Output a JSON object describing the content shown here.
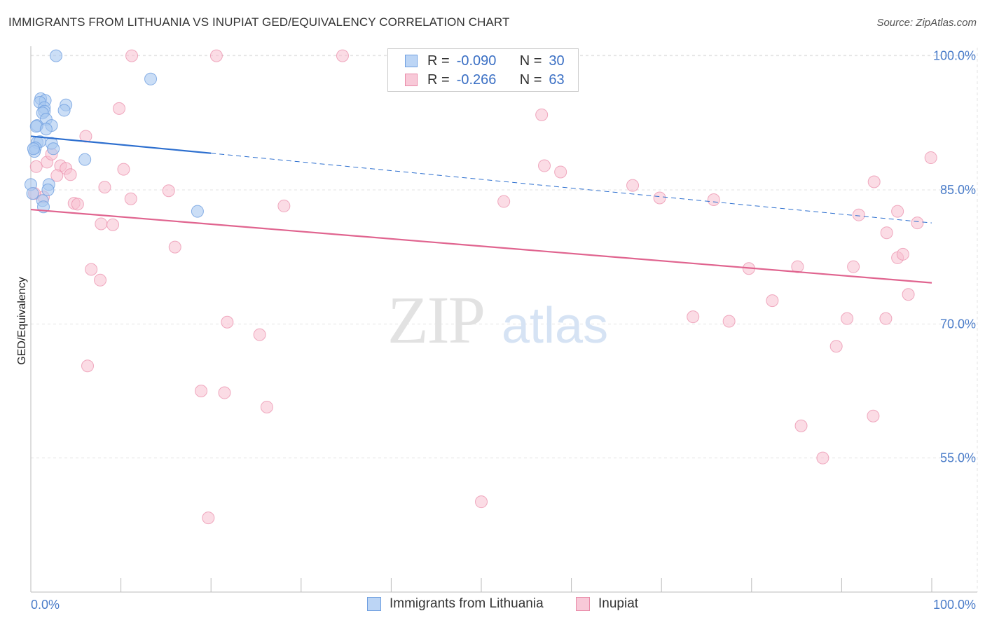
{
  "header": {
    "title": "IMMIGRANTS FROM LITHUANIA VS INUPIAT GED/EQUIVALENCY CORRELATION CHART",
    "source": "Source: ZipAtlas.com"
  },
  "watermark": {
    "zip": "ZIP",
    "atlas": "atlas"
  },
  "legend": {
    "rows": [
      {
        "r_label": "R =",
        "r_value": "-0.090",
        "n_label": "N =",
        "n_value": "30"
      },
      {
        "r_label": "R =",
        "r_value": "-0.266",
        "n_label": "N =",
        "n_value": "63"
      }
    ]
  },
  "bottom_legend": {
    "items": [
      {
        "label": "Immigrants from Lithuania"
      },
      {
        "label": "Inupiat"
      }
    ]
  },
  "colors": {
    "blue_fill": "#a9c8f0",
    "blue_stroke": "#6f9fe0",
    "blue_line": "#2d6fcf",
    "pink_fill": "#f7bfd0",
    "pink_stroke": "#e98aa8",
    "pink_line": "#e0648f",
    "tick_label": "#4a7cc9"
  },
  "chart_data": {
    "type": "scatter",
    "title": "IMMIGRANTS FROM LITHUANIA VS INUPIAT GED/EQUIVALENCY CORRELATION CHART",
    "xlabel": "",
    "ylabel": "GED/Equivalency",
    "xlim": [
      0,
      100
    ],
    "ylim": [
      40,
      101.5
    ],
    "x_tick_labels": [
      "0.0%",
      "100.0%"
    ],
    "y_ticks": [
      {
        "value": 100,
        "label": "100.0%"
      },
      {
        "value": 85,
        "label": "85.0%"
      },
      {
        "value": 70,
        "label": "70.0%"
      },
      {
        "value": 55,
        "label": "55.0%"
      }
    ],
    "grid": true,
    "legend_position": "top-center",
    "series": [
      {
        "name": "Immigrants from Lithuania",
        "r": -0.09,
        "n": 30,
        "trend": {
          "x0": 0,
          "y0": 91.0,
          "x1": 20,
          "y1": 89.1,
          "dashed_to_x": 100,
          "dashed_to_y": 81.3
        },
        "points": [
          [
            2.8,
            100.0
          ],
          [
            13.3,
            97.4
          ],
          [
            1.1,
            95.2
          ],
          [
            1.6,
            95.0
          ],
          [
            1.0,
            94.8
          ],
          [
            3.9,
            94.5
          ],
          [
            1.5,
            94.2
          ],
          [
            1.5,
            93.8
          ],
          [
            1.3,
            93.6
          ],
          [
            3.7,
            93.9
          ],
          [
            1.7,
            92.9
          ],
          [
            0.7,
            92.2
          ],
          [
            0.6,
            92.1
          ],
          [
            2.3,
            92.2
          ],
          [
            1.7,
            91.8
          ],
          [
            0.7,
            90.3
          ],
          [
            1.0,
            90.4
          ],
          [
            2.3,
            90.2
          ],
          [
            0.5,
            89.7
          ],
          [
            2.5,
            89.6
          ],
          [
            0.4,
            89.3
          ],
          [
            0.3,
            89.6
          ],
          [
            6.0,
            88.4
          ],
          [
            0.0,
            85.6
          ],
          [
            2.0,
            85.6
          ],
          [
            1.9,
            85.0
          ],
          [
            1.3,
            83.8
          ],
          [
            1.4,
            83.1
          ],
          [
            18.5,
            82.6
          ],
          [
            0.2,
            84.6
          ]
        ]
      },
      {
        "name": "Inupiat",
        "r": -0.266,
        "n": 63,
        "trend": {
          "x0": 0,
          "y0": 82.8,
          "x1": 100,
          "y1": 74.6
        },
        "points": [
          [
            11.2,
            100.0
          ],
          [
            20.6,
            100.0
          ],
          [
            34.6,
            100.0
          ],
          [
            47.3,
            100.0
          ],
          [
            9.8,
            94.1
          ],
          [
            56.7,
            93.4
          ],
          [
            6.1,
            91.0
          ],
          [
            99.9,
            88.6
          ],
          [
            1.8,
            88.1
          ],
          [
            2.3,
            89.0
          ],
          [
            0.6,
            87.6
          ],
          [
            3.3,
            87.7
          ],
          [
            3.9,
            87.4
          ],
          [
            10.3,
            87.3
          ],
          [
            57.0,
            87.7
          ],
          [
            58.8,
            87.0
          ],
          [
            2.9,
            86.6
          ],
          [
            4.4,
            86.7
          ],
          [
            8.2,
            85.3
          ],
          [
            15.3,
            84.9
          ],
          [
            66.8,
            85.5
          ],
          [
            93.6,
            85.9
          ],
          [
            1.4,
            84.2
          ],
          [
            11.1,
            84.0
          ],
          [
            69.8,
            84.1
          ],
          [
            75.8,
            83.9
          ],
          [
            52.5,
            83.7
          ],
          [
            4.8,
            83.5
          ],
          [
            5.2,
            83.4
          ],
          [
            28.1,
            83.2
          ],
          [
            91.9,
            82.2
          ],
          [
            96.2,
            82.6
          ],
          [
            7.8,
            81.2
          ],
          [
            9.1,
            81.1
          ],
          [
            98.4,
            81.3
          ],
          [
            95.0,
            80.2
          ],
          [
            16.0,
            78.6
          ],
          [
            96.2,
            77.4
          ],
          [
            96.8,
            77.8
          ],
          [
            6.7,
            76.1
          ],
          [
            79.7,
            76.2
          ],
          [
            85.1,
            76.4
          ],
          [
            91.3,
            76.4
          ],
          [
            7.7,
            74.9
          ],
          [
            97.4,
            73.3
          ],
          [
            82.3,
            72.6
          ],
          [
            73.5,
            70.8
          ],
          [
            77.5,
            70.3
          ],
          [
            90.6,
            70.6
          ],
          [
            94.9,
            70.6
          ],
          [
            21.8,
            70.2
          ],
          [
            25.4,
            68.8
          ],
          [
            89.4,
            67.5
          ],
          [
            6.3,
            65.3
          ],
          [
            18.9,
            62.5
          ],
          [
            21.5,
            62.3
          ],
          [
            26.2,
            60.7
          ],
          [
            93.5,
            59.7
          ],
          [
            85.5,
            58.6
          ],
          [
            87.9,
            55.0
          ],
          [
            50.0,
            50.1
          ],
          [
            19.7,
            48.3
          ],
          [
            0.4,
            84.6
          ]
        ]
      }
    ]
  }
}
